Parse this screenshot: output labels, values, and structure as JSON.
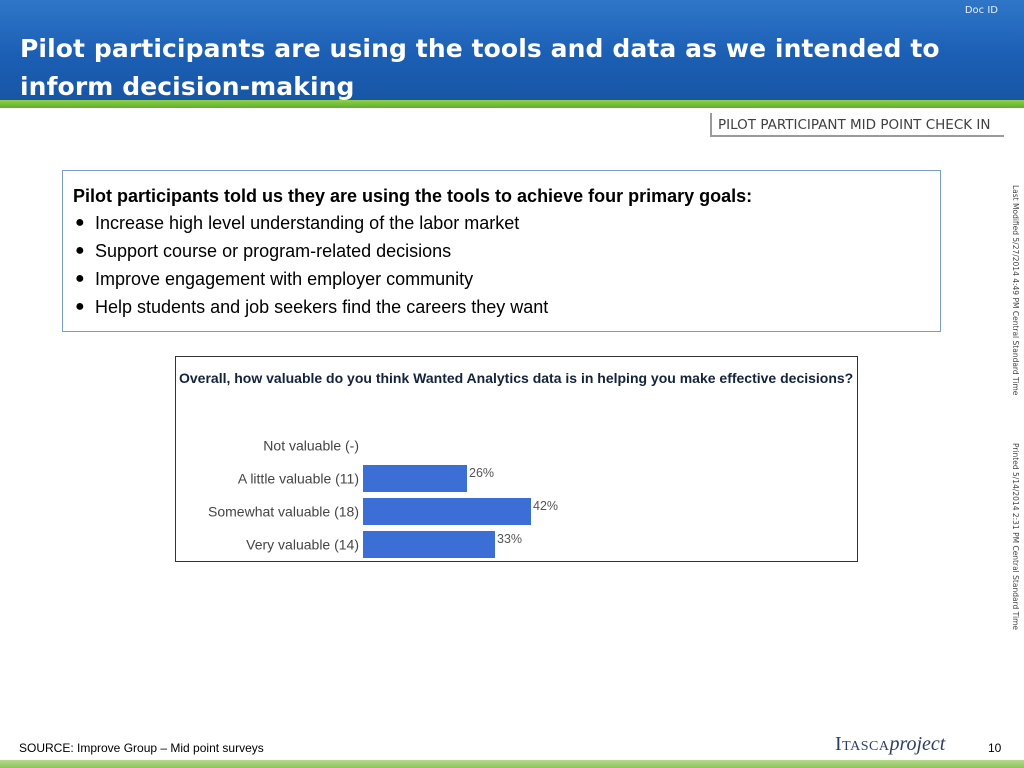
{
  "header": {
    "doc_id": "Doc ID",
    "title": "Pilot participants are using the tools and data as we intended to inform decision-making",
    "tag": "PILOT PARTICIPANT MID POINT CHECK IN"
  },
  "goals": {
    "heading": "Pilot participants told us they are using the tools to achieve four primary goals:",
    "items": [
      "Increase high level understanding of the labor market",
      "Support course or program-related decisions",
      "Improve engagement with employer community",
      "Help students and job seekers find the careers they want"
    ]
  },
  "chart_data": {
    "type": "bar",
    "orientation": "horizontal",
    "title": "Overall, how valuable do you think Wanted Analytics data is in helping you make effective decisions?",
    "categories": [
      "Not valuable (-)",
      "A little valuable (11)",
      "Somewhat valuable (18)",
      "Very valuable (14)"
    ],
    "values": [
      0,
      26,
      42,
      33
    ],
    "value_labels": [
      "",
      "26%",
      "42%",
      "33%"
    ],
    "bar_color": "#3c6fd6",
    "xlim": [
      0,
      100
    ],
    "grid": false,
    "legend": "none"
  },
  "side_notes": {
    "last_modified": "Last Modified 5/27/2014 4:49 PM Central Standard Time",
    "printed": "Printed 5/14/2014 2:31 PM Central Standard Time"
  },
  "footer": {
    "source": "SOURCE: Improve Group – Mid point surveys",
    "logo_caps": "Itasca",
    "logo_italic": "project",
    "page_number": "10"
  },
  "colors": {
    "header_blue": "#1b5fb4",
    "accent_green": "#6bb536",
    "box_border": "#7a9cc8"
  }
}
